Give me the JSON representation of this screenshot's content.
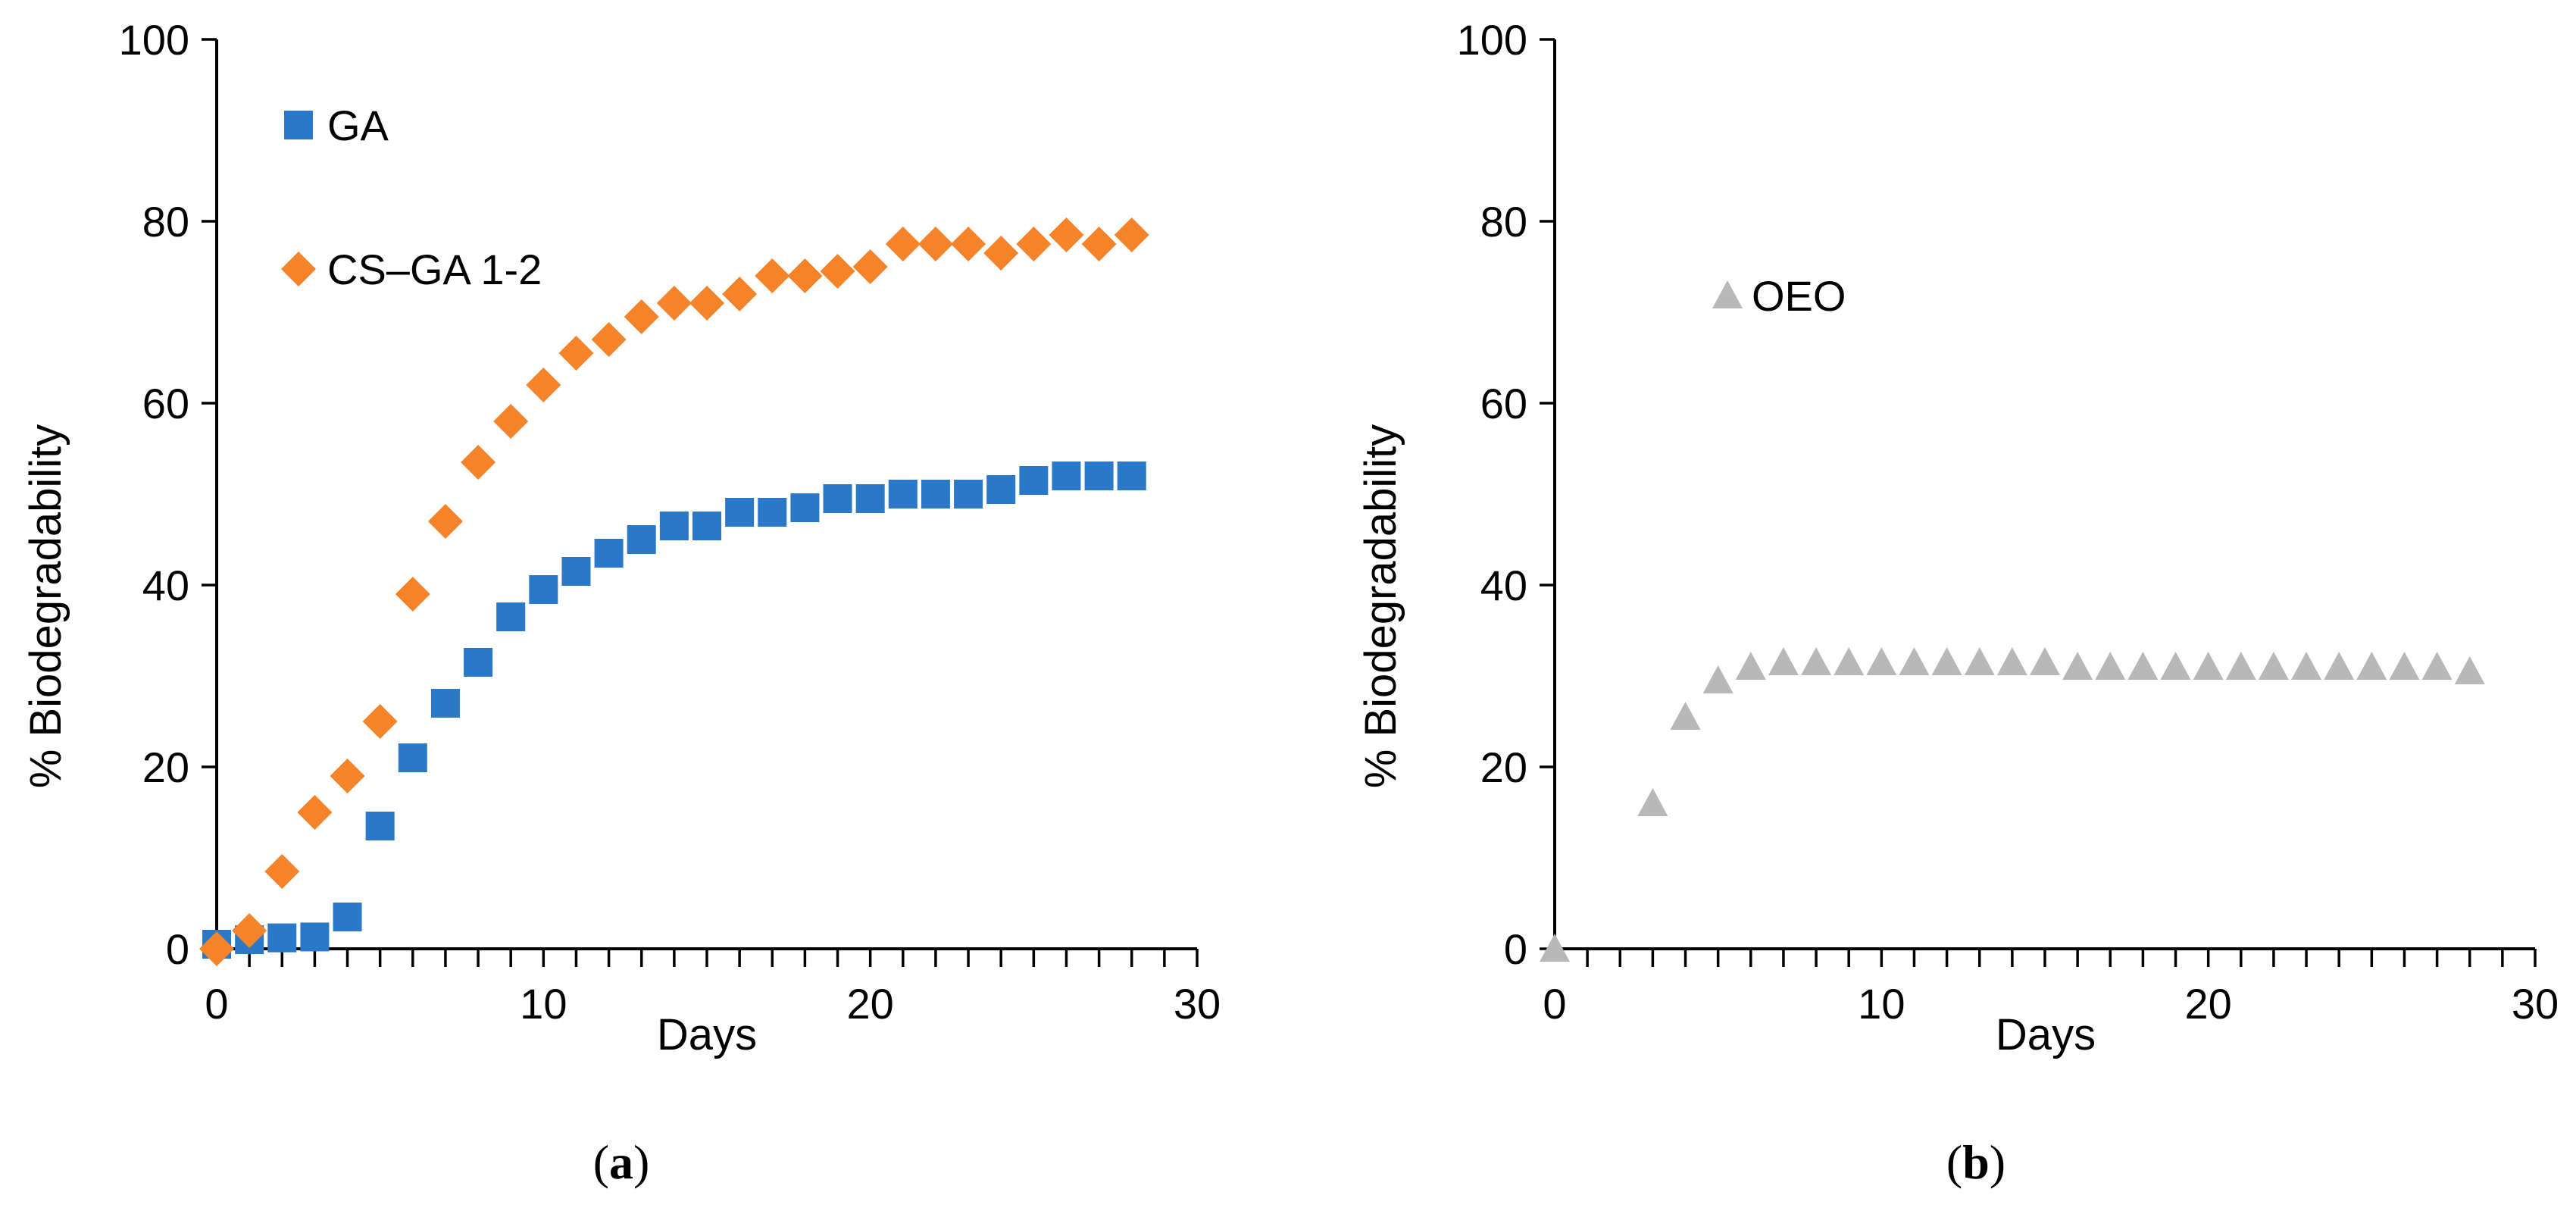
{
  "chart_data": [
    {
      "type": "scatter",
      "panel_label": "a",
      "xlabel": "Days",
      "ylabel": "% Biodegradability",
      "xlim": [
        0,
        30
      ],
      "ylim": [
        0,
        100
      ],
      "xticks": [
        0,
        10,
        20,
        30
      ],
      "yticks": [
        0,
        20,
        40,
        60,
        80,
        100
      ],
      "legend_position": "top-left",
      "series": [
        {
          "name": "GA",
          "marker": "square",
          "color": "#2a78c8",
          "x": [
            0,
            1,
            2,
            3,
            4,
            5,
            6,
            7,
            8,
            9,
            10,
            11,
            12,
            13,
            14,
            15,
            16,
            17,
            18,
            19,
            20,
            21,
            22,
            23,
            24,
            25,
            26,
            27,
            28
          ],
          "y": [
            0.5,
            1,
            1.2,
            1.3,
            3.5,
            13.5,
            21,
            27,
            31.5,
            36.5,
            39.5,
            41.5,
            43.5,
            45,
            46.5,
            46.5,
            48,
            48,
            48.5,
            49.5,
            49.5,
            50,
            50,
            50,
            50.5,
            51.5,
            52,
            52,
            52
          ]
        },
        {
          "name": "CS–GA 1-2",
          "marker": "diamond",
          "color": "#f5832a",
          "x": [
            0,
            1,
            2,
            3,
            4,
            5,
            6,
            7,
            8,
            9,
            10,
            11,
            12,
            13,
            14,
            15,
            16,
            17,
            18,
            19,
            20,
            21,
            22,
            23,
            24,
            25,
            26,
            27,
            28
          ],
          "y": [
            0,
            2,
            8.5,
            15,
            19,
            25,
            39,
            47,
            53.5,
            58,
            62,
            65.5,
            67,
            69.5,
            71,
            71,
            72,
            74,
            74,
            74.5,
            75,
            77.5,
            77.5,
            77.5,
            76.5,
            77.5,
            78.5,
            77.5,
            78.5
          ]
        }
      ]
    },
    {
      "type": "scatter",
      "panel_label": "b",
      "xlabel": "Days",
      "ylabel": "% Biodegradability",
      "xlim": [
        0,
        30
      ],
      "ylim": [
        0,
        100
      ],
      "xticks": [
        0,
        10,
        20,
        30
      ],
      "yticks": [
        0,
        20,
        40,
        60,
        80,
        100
      ],
      "legend_position": "upper-left",
      "series": [
        {
          "name": "OEO",
          "marker": "triangle",
          "color": "#b8b8b8",
          "x": [
            0,
            3,
            4,
            5,
            6,
            7,
            8,
            9,
            10,
            11,
            12,
            13,
            14,
            15,
            16,
            17,
            18,
            19,
            20,
            21,
            22,
            23,
            24,
            25,
            26,
            27,
            28
          ],
          "y": [
            0,
            16,
            25.5,
            29.5,
            31,
            31.5,
            31.5,
            31.5,
            31.5,
            31.5,
            31.5,
            31.5,
            31.5,
            31.5,
            31,
            31,
            31,
            31,
            31,
            31,
            31,
            31,
            31,
            31,
            31,
            31,
            30.5
          ]
        }
      ]
    }
  ]
}
